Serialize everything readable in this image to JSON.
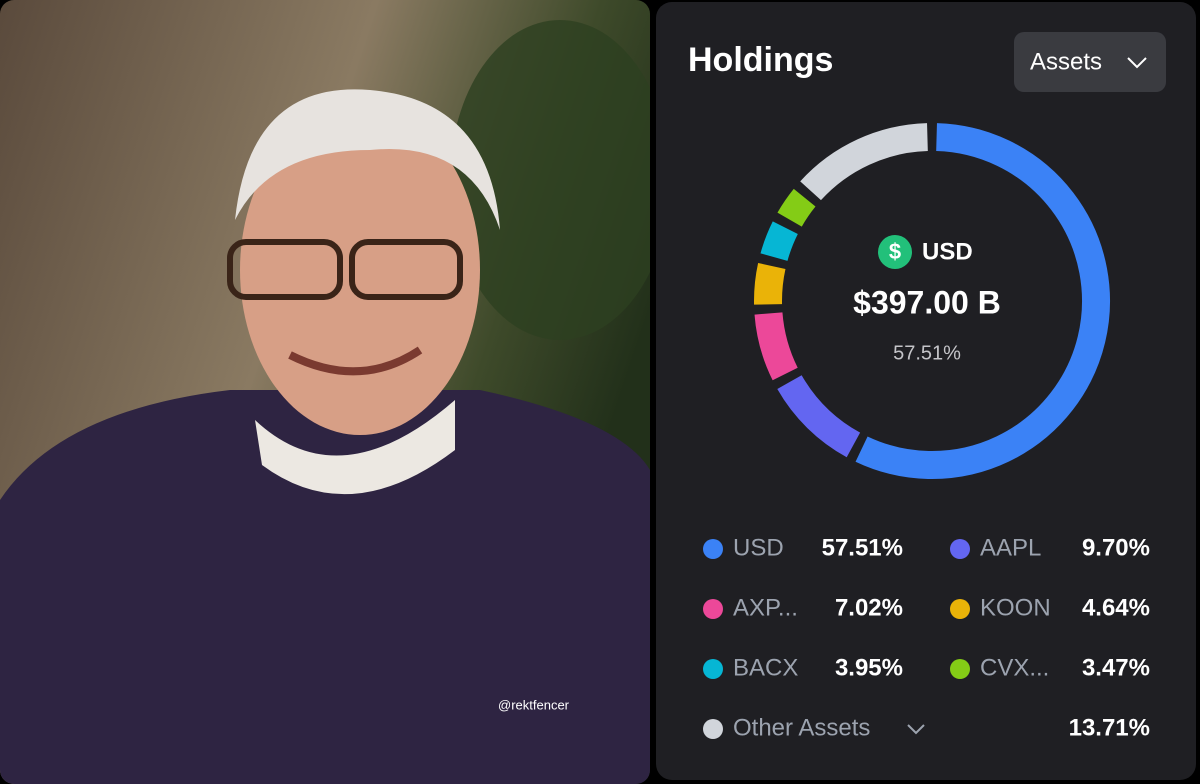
{
  "chart_data": {
    "type": "donut",
    "title": "Holdings",
    "dropdown": "Assets",
    "center_label": "USD",
    "center_amount": "$397.00 B",
    "categories": [
      "USD",
      "AAPL",
      "AXP...",
      "KOON",
      "BACX",
      "CVX...",
      "Other Assets"
    ],
    "values": [
      57.51,
      9.7,
      7.02,
      4.64,
      3.95,
      3.47,
      13.71
    ],
    "value_labels": [
      "57.51%",
      "9.70%",
      "7.02%",
      "4.64%",
      "3.95%",
      "3.47%",
      "13.71%"
    ],
    "colors": [
      "#3b82f6",
      "#6366f1",
      "#ec4899",
      "#eab308",
      "#06b6d4",
      "#84cc16",
      "#d1d5db"
    ]
  },
  "watermark": "@rektfencer"
}
